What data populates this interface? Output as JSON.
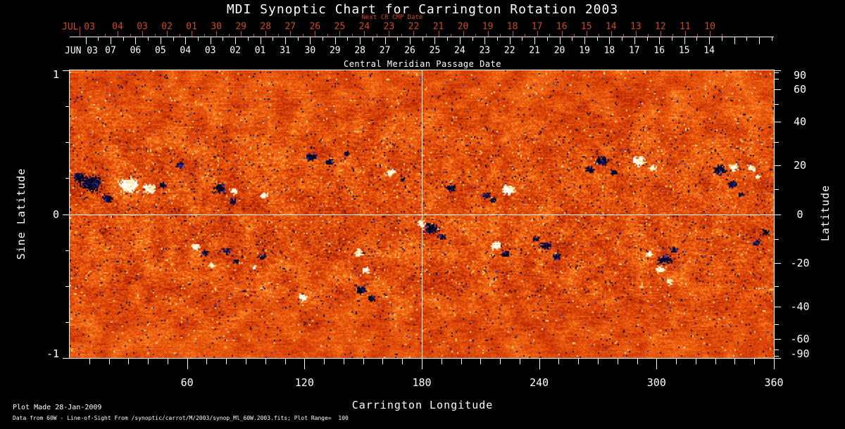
{
  "title": "MDI Synoptic Chart for Carrington Rotation 2003",
  "colors": {
    "background": "#000000",
    "axis_red": "#cd4a1e",
    "axis_white": "#ffffff",
    "crosshair": "#ffffff"
  },
  "next_cr_axis": {
    "label": "Next CR CMP Date",
    "month_label": "JUL 03",
    "days": [
      "04",
      "03",
      "02",
      "01",
      "30",
      "29",
      "28",
      "27",
      "26",
      "25",
      "24",
      "23",
      "22",
      "21",
      "20",
      "19",
      "18",
      "17",
      "16",
      "15",
      "14",
      "13",
      "12",
      "11",
      "10"
    ]
  },
  "cmp_axis": {
    "label": "Central Meridian Passage Date",
    "month_label": "JUN 03",
    "days": [
      "07",
      "06",
      "05",
      "04",
      "03",
      "02",
      "01",
      "31",
      "30",
      "29",
      "28",
      "27",
      "26",
      "25",
      "24",
      "23",
      "22",
      "21",
      "20",
      "19",
      "18",
      "17",
      "16",
      "15",
      "14"
    ]
  },
  "footer": {
    "line1": "Plot Made 28-Jan-2009",
    "line2": "Data from 60W - Line-of-Sight From /synoptic/carrot/M/2003/synop_Ml_60W.2003.fits; Plot Range=  100"
  },
  "chart_data": {
    "type": "heatmap",
    "title": "MDI Synoptic Chart for Carrington Rotation 2003",
    "description": "Line-of-sight solar magnetic field synoptic map for Carrington rotation 2003; orange/red speckle background with dark (negative polarity) and white (positive polarity) active regions concentrated in two activity belts near sine latitude +/-0.3.",
    "x_axis": {
      "label": "Carrington Longitude",
      "range": [
        0,
        360
      ],
      "major_ticks": [
        60,
        120,
        180,
        240,
        300,
        360
      ],
      "minor_tick_step": 10
    },
    "y_axis_left": {
      "label": "Sine Latitude",
      "range": [
        -1,
        1
      ],
      "major_ticks": [
        1,
        0,
        -1
      ],
      "minor_tick_step": 0.25
    },
    "y_axis_right": {
      "label": "Latitude",
      "tick_labels": [
        90,
        60,
        40,
        20,
        0,
        -20,
        -40,
        -60,
        -90
      ],
      "minor_tick_step_deg": 10
    },
    "grid": "crosshair only",
    "crosshair": {
      "longitude": 180,
      "sine_latitude": 0
    },
    "plot_range_gauss": 100,
    "palette_background": [
      "#600800",
      "#9a1c00",
      "#c83304",
      "#e24e0a",
      "#f26c16",
      "#ff922a",
      "#ffc058",
      "#ffe8a8"
    ],
    "polarity_colors": {
      "neg": [
        "#020218",
        "#0c0c38",
        "#1c1c74",
        "#3434b4"
      ],
      "pos": [
        "#ffffff",
        "#fff8e4",
        "#ffe482",
        "#ffc850"
      ]
    },
    "active_regions": [
      {
        "lon": 11.2,
        "sinlat": 0.21,
        "r": 20,
        "pol": "neg"
      },
      {
        "lon": 4.7,
        "sinlat": 0.26,
        "r": 12,
        "pol": "neg"
      },
      {
        "lon": 19.1,
        "sinlat": 0.11,
        "r": 10,
        "pol": "neg"
      },
      {
        "lon": 30.2,
        "sinlat": 0.2,
        "r": 18,
        "pol": "pos"
      },
      {
        "lon": 40.7,
        "sinlat": 0.18,
        "r": 12,
        "pol": "pos"
      },
      {
        "lon": 47.9,
        "sinlat": 0.2,
        "r": 7,
        "pol": "neg"
      },
      {
        "lon": 56.5,
        "sinlat": 0.34,
        "r": 7,
        "pol": "neg"
      },
      {
        "lon": 76.7,
        "sinlat": 0.18,
        "r": 11,
        "pol": "neg"
      },
      {
        "lon": 83.2,
        "sinlat": 0.09,
        "r": 7,
        "pol": "neg"
      },
      {
        "lon": 84.6,
        "sinlat": 0.16,
        "r": 7,
        "pol": "pos"
      },
      {
        "lon": 99.4,
        "sinlat": 0.13,
        "r": 8,
        "pol": "pos"
      },
      {
        "lon": 123.5,
        "sinlat": 0.4,
        "r": 10,
        "pol": "neg"
      },
      {
        "lon": 132.8,
        "sinlat": 0.36,
        "r": 8,
        "pol": "neg"
      },
      {
        "lon": 141.5,
        "sinlat": 0.42,
        "r": 6,
        "pol": "neg"
      },
      {
        "lon": 164.2,
        "sinlat": 0.29,
        "r": 8,
        "pol": "pos"
      },
      {
        "lon": 170.3,
        "sinlat": 0.24,
        "r": 5,
        "pol": "neg"
      },
      {
        "lon": 194.8,
        "sinlat": 0.18,
        "r": 9,
        "pol": "neg"
      },
      {
        "lon": 212.8,
        "sinlat": 0.13,
        "r": 8,
        "pol": "neg"
      },
      {
        "lon": 224.3,
        "sinlat": 0.17,
        "r": 12,
        "pol": "pos"
      },
      {
        "lon": 216.4,
        "sinlat": 0.1,
        "r": 7,
        "pol": "neg"
      },
      {
        "lon": 272.2,
        "sinlat": 0.37,
        "r": 12,
        "pol": "neg"
      },
      {
        "lon": 266.0,
        "sinlat": 0.31,
        "r": 8,
        "pol": "neg"
      },
      {
        "lon": 278.3,
        "sinlat": 0.29,
        "r": 6,
        "pol": "neg"
      },
      {
        "lon": 291.2,
        "sinlat": 0.37,
        "r": 12,
        "pol": "pos"
      },
      {
        "lon": 298.4,
        "sinlat": 0.32,
        "r": 7,
        "pol": "pos"
      },
      {
        "lon": 332.3,
        "sinlat": 0.31,
        "r": 12,
        "pol": "neg"
      },
      {
        "lon": 338.8,
        "sinlat": 0.21,
        "r": 8,
        "pol": "neg"
      },
      {
        "lon": 339.5,
        "sinlat": 0.33,
        "r": 9,
        "pol": "pos"
      },
      {
        "lon": 348.8,
        "sinlat": 0.32,
        "r": 8,
        "pol": "pos"
      },
      {
        "lon": 352.4,
        "sinlat": 0.26,
        "r": 6,
        "pol": "pos"
      },
      {
        "lon": 343.1,
        "sinlat": 0.14,
        "r": 6,
        "pol": "neg"
      },
      {
        "lon": 64.4,
        "sinlat": -0.23,
        "r": 9,
        "pol": "pos"
      },
      {
        "lon": 69.5,
        "sinlat": -0.27,
        "r": 7,
        "pol": "neg"
      },
      {
        "lon": 72.4,
        "sinlat": -0.36,
        "r": 6,
        "pol": "pos"
      },
      {
        "lon": 80.3,
        "sinlat": -0.26,
        "r": 8,
        "pol": "neg"
      },
      {
        "lon": 85.0,
        "sinlat": -0.33,
        "r": 6,
        "pol": "neg"
      },
      {
        "lon": 98.3,
        "sinlat": -0.3,
        "r": 7,
        "pol": "neg"
      },
      {
        "lon": 94.7,
        "sinlat": -0.37,
        "r": 5,
        "pol": "pos"
      },
      {
        "lon": 119.2,
        "sinlat": -0.58,
        "r": 9,
        "pol": "pos"
      },
      {
        "lon": 148.0,
        "sinlat": -0.27,
        "r": 9,
        "pol": "pos"
      },
      {
        "lon": 151.6,
        "sinlat": -0.39,
        "r": 7,
        "pol": "pos"
      },
      {
        "lon": 148.7,
        "sinlat": -0.53,
        "r": 10,
        "pol": "neg"
      },
      {
        "lon": 154.4,
        "sinlat": -0.59,
        "r": 8,
        "pol": "neg"
      },
      {
        "lon": 184.7,
        "sinlat": -0.1,
        "r": 13,
        "pol": "neg"
      },
      {
        "lon": 179.6,
        "sinlat": -0.07,
        "r": 8,
        "pol": "pos"
      },
      {
        "lon": 190.4,
        "sinlat": -0.16,
        "r": 8,
        "pol": "neg"
      },
      {
        "lon": 218.2,
        "sinlat": -0.22,
        "r": 10,
        "pol": "pos"
      },
      {
        "lon": 222.8,
        "sinlat": -0.28,
        "r": 7,
        "pol": "neg"
      },
      {
        "lon": 243.4,
        "sinlat": -0.22,
        "r": 10,
        "pol": "neg"
      },
      {
        "lon": 248.8,
        "sinlat": -0.3,
        "r": 8,
        "pol": "neg"
      },
      {
        "lon": 238.7,
        "sinlat": -0.17,
        "r": 6,
        "pol": "neg"
      },
      {
        "lon": 304.6,
        "sinlat": -0.32,
        "r": 12,
        "pol": "neg"
      },
      {
        "lon": 302.0,
        "sinlat": -0.39,
        "r": 9,
        "pol": "pos"
      },
      {
        "lon": 309.2,
        "sinlat": -0.25,
        "r": 7,
        "pol": "neg"
      },
      {
        "lon": 296.3,
        "sinlat": -0.28,
        "r": 6,
        "pol": "pos"
      },
      {
        "lon": 307.1,
        "sinlat": -0.47,
        "r": 7,
        "pol": "pos"
      },
      {
        "lon": 351.4,
        "sinlat": -0.2,
        "r": 8,
        "pol": "neg"
      },
      {
        "lon": 356.0,
        "sinlat": -0.13,
        "r": 7,
        "pol": "neg"
      }
    ]
  }
}
